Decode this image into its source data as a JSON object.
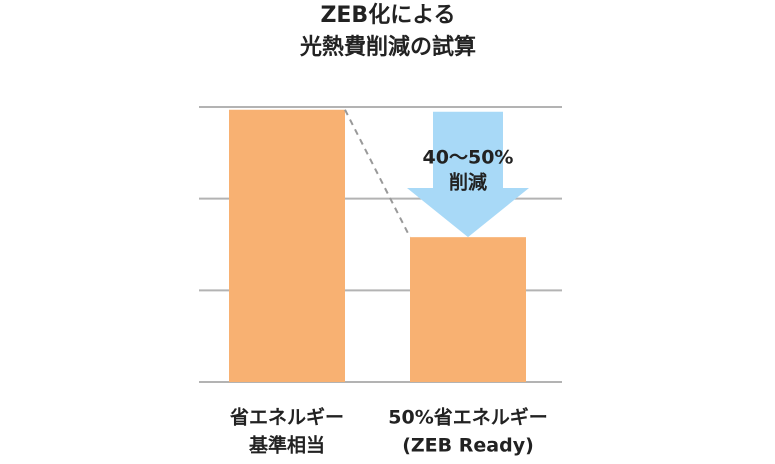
{
  "chart_data": {
    "type": "bar",
    "title": [
      "ZEB化による",
      "光熱費削減の試算"
    ],
    "categories": [
      [
        "省エネルギー",
        "基準相当"
      ],
      [
        "50%省エネルギー",
        "(ZEB Ready)"
      ]
    ],
    "values": [
      2.97,
      1.58
    ],
    "color": "#f8b172",
    "ylim": [
      0,
      3
    ],
    "yticks": [
      0,
      1,
      2,
      3
    ],
    "grid": true,
    "annotation": [
      "40〜50%",
      "削減"
    ],
    "annotation_color": "#a8d9f7"
  }
}
